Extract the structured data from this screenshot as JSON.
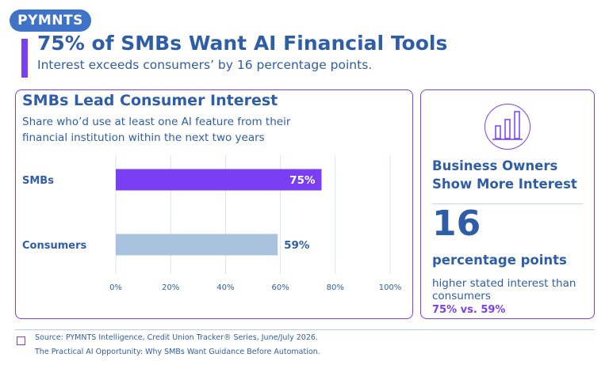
{
  "brand": {
    "logo_text": "PYMNTS"
  },
  "header": {
    "title": "75% of SMBs Want AI Financial Tools",
    "subtitle": "Interest exceeds consumers’ by 16 percentage points."
  },
  "chart_data": {
    "type": "bar",
    "orientation": "horizontal",
    "title": "SMBs Lead Consumer Interest",
    "subtitle": "Share who’d use at least one AI feature from their financial institution within the next two years",
    "categories": [
      "SMBs",
      "Consumers"
    ],
    "values": [
      75,
      59
    ],
    "data_labels": [
      "75%",
      "59%"
    ],
    "xlim": [
      0,
      100
    ],
    "x_ticks": [
      0,
      20,
      40,
      60,
      80,
      100
    ],
    "x_tick_labels": [
      "0%",
      "20%",
      "40%",
      "60%",
      "80%",
      "100%"
    ],
    "grid": true,
    "colors": [
      "#7a3ff3",
      "#a9c3de"
    ],
    "label_colors": [
      "#ffffff",
      "#2f5ea8"
    ]
  },
  "kpi": {
    "icon": "bar-chart-icon",
    "title": "Business Owners Show More Interest",
    "number": "16",
    "unit": "percentage points",
    "description": "higher stated interest than consumers",
    "comparison": "75% vs. 59%"
  },
  "footer": {
    "source": "Source: PYMNTS Intelligence, Credit Union Tracker® Series, June/July 2026.",
    "note": "The Practical AI Opportunity: Why SMBs Want Guidance Before Automation."
  },
  "colors": {
    "accent": "#7a3ff3",
    "brand": "#3f73c8",
    "text": "#2f5ea8"
  }
}
